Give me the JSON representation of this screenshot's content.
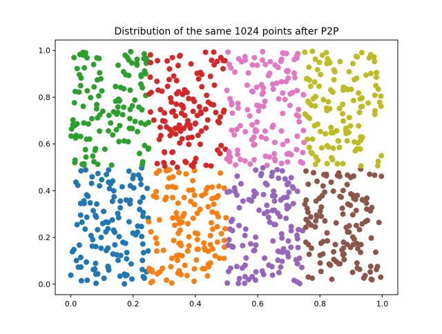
{
  "chart_data": {
    "type": "scatter",
    "title": "Distribution of the same 1024 points after P2P",
    "xlabel": "",
    "ylabel": "",
    "xlim": [
      -0.05,
      1.05
    ],
    "ylim": [
      -0.045,
      1.045
    ],
    "xticks": [
      0.0,
      0.2,
      0.4,
      0.6,
      0.8,
      1.0
    ],
    "xtick_labels": [
      "0.0",
      "0.2",
      "0.4",
      "0.6",
      "0.8",
      "1.0"
    ],
    "yticks": [
      0.0,
      0.2,
      0.4,
      0.6,
      0.8,
      1.0
    ],
    "ytick_labels": [
      "0.0",
      "0.2",
      "0.4",
      "0.6",
      "0.8",
      "1.0"
    ],
    "grid": false,
    "legend": "none",
    "marker": "filled-circle",
    "groups": [
      {
        "color": "#1f77b4",
        "x_range": [
          0.0,
          0.25
        ],
        "y_range": [
          0.0,
          0.5
        ],
        "count": 128
      },
      {
        "color": "#2ca02c",
        "x_range": [
          0.0,
          0.25
        ],
        "y_range": [
          0.5,
          1.0
        ],
        "count": 128
      },
      {
        "color": "#ff7f0e",
        "x_range": [
          0.25,
          0.5
        ],
        "y_range": [
          0.0,
          0.5
        ],
        "count": 128
      },
      {
        "color": "#d62728",
        "x_range": [
          0.25,
          0.5
        ],
        "y_range": [
          0.5,
          1.0
        ],
        "count": 128
      },
      {
        "color": "#9467bd",
        "x_range": [
          0.5,
          0.75
        ],
        "y_range": [
          0.0,
          0.5
        ],
        "count": 128
      },
      {
        "color": "#e377c2",
        "x_range": [
          0.5,
          0.75
        ],
        "y_range": [
          0.5,
          1.0
        ],
        "count": 128
      },
      {
        "color": "#8c564b",
        "x_range": [
          0.75,
          1.0
        ],
        "y_range": [
          0.0,
          0.5
        ],
        "count": 128
      },
      {
        "color": "#bcbd22",
        "x_range": [
          0.75,
          1.0
        ],
        "y_range": [
          0.5,
          1.0
        ],
        "count": 128
      }
    ]
  }
}
